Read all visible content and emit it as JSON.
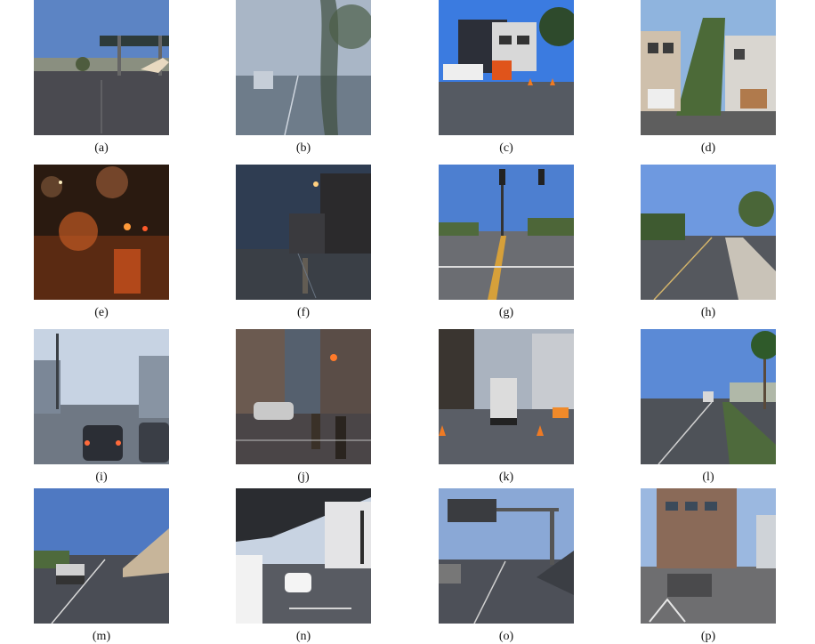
{
  "figure": {
    "panels": [
      {
        "label": "(a)",
        "scene": "highway-overpass-day",
        "sky": "#5c84c4",
        "ground": "#4a4a50"
      },
      {
        "label": "(b)",
        "scene": "rainy-foggy-street",
        "sky": "#a9b6c6",
        "ground": "#6e7c8a"
      },
      {
        "label": "(c)",
        "scene": "houses-truck-cones",
        "sky": "#3b7be0",
        "ground": "#555a62"
      },
      {
        "label": "(d)",
        "scene": "hillside-houses",
        "sky": "#8fb4de",
        "ground": "#5e5e5e"
      },
      {
        "label": "(e)",
        "scene": "night-rain-lights",
        "sky": "#2a1a10",
        "ground": "#5a2a12"
      },
      {
        "label": "(f)",
        "scene": "dusk-wet-street",
        "sky": "#2f3d52",
        "ground": "#3a3f46"
      },
      {
        "label": "(g)",
        "scene": "wide-road-traffic-light",
        "sky": "#4d7fd0",
        "ground": "#6b6d72"
      },
      {
        "label": "(h)",
        "scene": "residential-road",
        "sky": "#6e99e0",
        "ground": "#55585e"
      },
      {
        "label": "(i)",
        "scene": "rainy-city-cars",
        "sky": "#c7d3e3",
        "ground": "#6f7884"
      },
      {
        "label": "(j)",
        "scene": "evening-city-crosswalk",
        "sky": "#55606e",
        "ground": "#4a4547"
      },
      {
        "label": "(k)",
        "scene": "city-truck-cones",
        "sky": "#aab3bf",
        "ground": "#5a5e66"
      },
      {
        "label": "(l)",
        "scene": "palm-boulevard",
        "sky": "#5b8ad6",
        "ground": "#4e5258"
      },
      {
        "label": "(m)",
        "scene": "freeway-pickup",
        "sky": "#4f79c2",
        "ground": "#4a4d55"
      },
      {
        "label": "(n)",
        "scene": "underpass-city",
        "sky": "#c8d3e2",
        "ground": "#585b62"
      },
      {
        "label": "(o)",
        "scene": "freeway-sign",
        "sky": "#8aa8d6",
        "ground": "#4d5058"
      },
      {
        "label": "(p)",
        "scene": "corner-building",
        "sky": "#9bb8e0",
        "ground": "#6e6e70"
      }
    ]
  }
}
